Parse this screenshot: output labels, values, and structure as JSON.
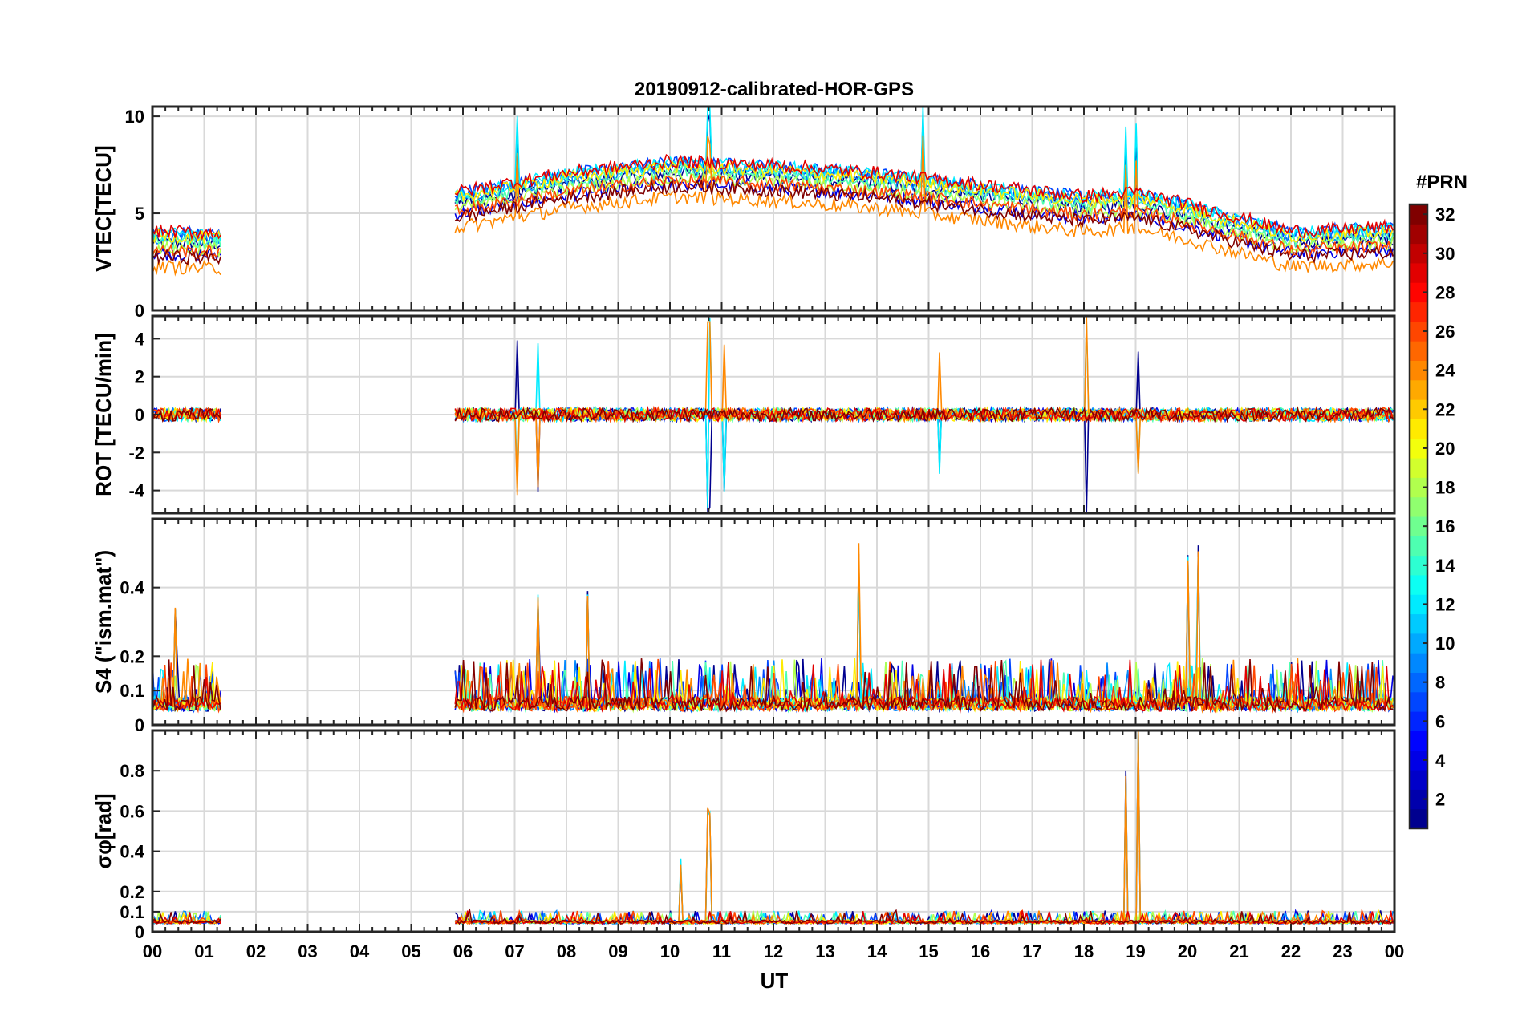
{
  "chart_data": {
    "type": "line",
    "title": "20190912-calibrated-HOR-GPS",
    "xlabel": "UT",
    "x_range_hours": [
      0,
      24
    ],
    "x_tick_labels": [
      "00",
      "01",
      "02",
      "03",
      "04",
      "05",
      "06",
      "07",
      "08",
      "09",
      "10",
      "11",
      "12",
      "13",
      "14",
      "15",
      "16",
      "17",
      "18",
      "19",
      "20",
      "21",
      "22",
      "23",
      "00"
    ],
    "grid": true,
    "colorbar": {
      "label": "#PRN",
      "range": [
        1,
        32
      ],
      "ticks": [
        "2",
        "4",
        "6",
        "8",
        "10",
        "12",
        "14",
        "16",
        "18",
        "20",
        "22",
        "24",
        "26",
        "28",
        "30",
        "32"
      ],
      "colormap": [
        "#00008f",
        "#0000ff",
        "#0080ff",
        "#00ffff",
        "#80ff80",
        "#ffff00",
        "#ff8000",
        "#ff0000",
        "#800000"
      ]
    },
    "panels": [
      {
        "id": "vtec",
        "ylabel": "VTEC[TECU]",
        "ylim": [
          0,
          10.5
        ],
        "yticks": [
          0,
          5,
          10
        ],
        "ytick_labels": [
          "0",
          "5",
          "10"
        ],
        "segments": [
          [
            0,
            1.35
          ],
          [
            5.85,
            24
          ]
        ],
        "baseline_profile": [
          [
            0,
            3.2
          ],
          [
            1.35,
            3.1
          ],
          [
            5.85,
            5.2
          ],
          [
            8,
            6.2
          ],
          [
            10,
            6.8
          ],
          [
            12,
            6.6
          ],
          [
            14,
            6.2
          ],
          [
            16,
            5.6
          ],
          [
            18,
            5.0
          ],
          [
            19,
            5.2
          ],
          [
            20,
            4.6
          ],
          [
            22,
            3.2
          ],
          [
            24,
            3.4
          ]
        ],
        "events": [
          {
            "t": 7.05,
            "amp": 3.5
          },
          {
            "t": 10.75,
            "amp": 3.0
          },
          {
            "t": 14.9,
            "amp": 4.0
          },
          {
            "t": 18.8,
            "amp": 3.5
          },
          {
            "t": 19.0,
            "amp": 3.8
          }
        ],
        "noise": 0.35
      },
      {
        "id": "rot",
        "ylabel": "ROT [TECU/min]",
        "ylim": [
          -5.2,
          5.2
        ],
        "yticks": [
          -4,
          -2,
          0,
          2,
          4
        ],
        "ytick_labels": [
          "-4",
          "-2",
          "0",
          "2",
          "4"
        ],
        "segments": [
          [
            0,
            1.35
          ],
          [
            5.85,
            24
          ]
        ],
        "baseline_profile": [
          [
            0,
            0
          ],
          [
            24,
            0
          ]
        ],
        "events": [
          {
            "t": 7.05,
            "amp": 4.1
          },
          {
            "t": 7.45,
            "amp": 4.0
          },
          {
            "t": 10.75,
            "amp": 4.9
          },
          {
            "t": 11.05,
            "amp": 3.8
          },
          {
            "t": 15.2,
            "amp": 3.0
          },
          {
            "t": 18.05,
            "amp": 5.2
          },
          {
            "t": 19.05,
            "amp": 3.2
          }
        ],
        "noise": 0.35
      },
      {
        "id": "s4",
        "ylabel": "S4 (\"ism.mat\")",
        "ylim": [
          0,
          0.6
        ],
        "yticks": [
          0,
          0.1,
          0.2,
          0.4
        ],
        "ytick_labels": [
          "0",
          "0.1",
          "0.2",
          "0.4"
        ],
        "segments": [
          [
            0,
            1.35
          ],
          [
            5.85,
            24
          ]
        ],
        "baseline_profile": [
          [
            0,
            0.04
          ],
          [
            24,
            0.04
          ]
        ],
        "events": [
          {
            "t": 0.45,
            "amp": 0.27
          },
          {
            "t": 13.65,
            "amp": 0.45
          },
          {
            "t": 20.2,
            "amp": 0.45
          },
          {
            "t": 7.45,
            "amp": 0.3
          },
          {
            "t": 8.4,
            "amp": 0.32
          },
          {
            "t": 20.0,
            "amp": 0.42
          }
        ],
        "noise": 0.07
      },
      {
        "id": "sigma_phi",
        "ylabel": "σφ[rad]",
        "ylim": [
          0,
          1.0
        ],
        "yticks": [
          0,
          0.1,
          0.2,
          0.4,
          0.6,
          0.8
        ],
        "ytick_labels": [
          "0",
          "0.1",
          "0.2",
          "0.4",
          "0.6",
          "0.8"
        ],
        "segments": [
          [
            0,
            1.35
          ],
          [
            5.85,
            24
          ]
        ],
        "baseline_profile": [
          [
            0,
            0.04
          ],
          [
            24,
            0.04
          ]
        ],
        "events": [
          {
            "t": 10.75,
            "amp": 0.54
          },
          {
            "t": 18.8,
            "amp": 0.71
          },
          {
            "t": 19.05,
            "amp": 1.0
          },
          {
            "t": 10.2,
            "amp": 0.28
          }
        ],
        "noise": 0.03
      }
    ]
  }
}
